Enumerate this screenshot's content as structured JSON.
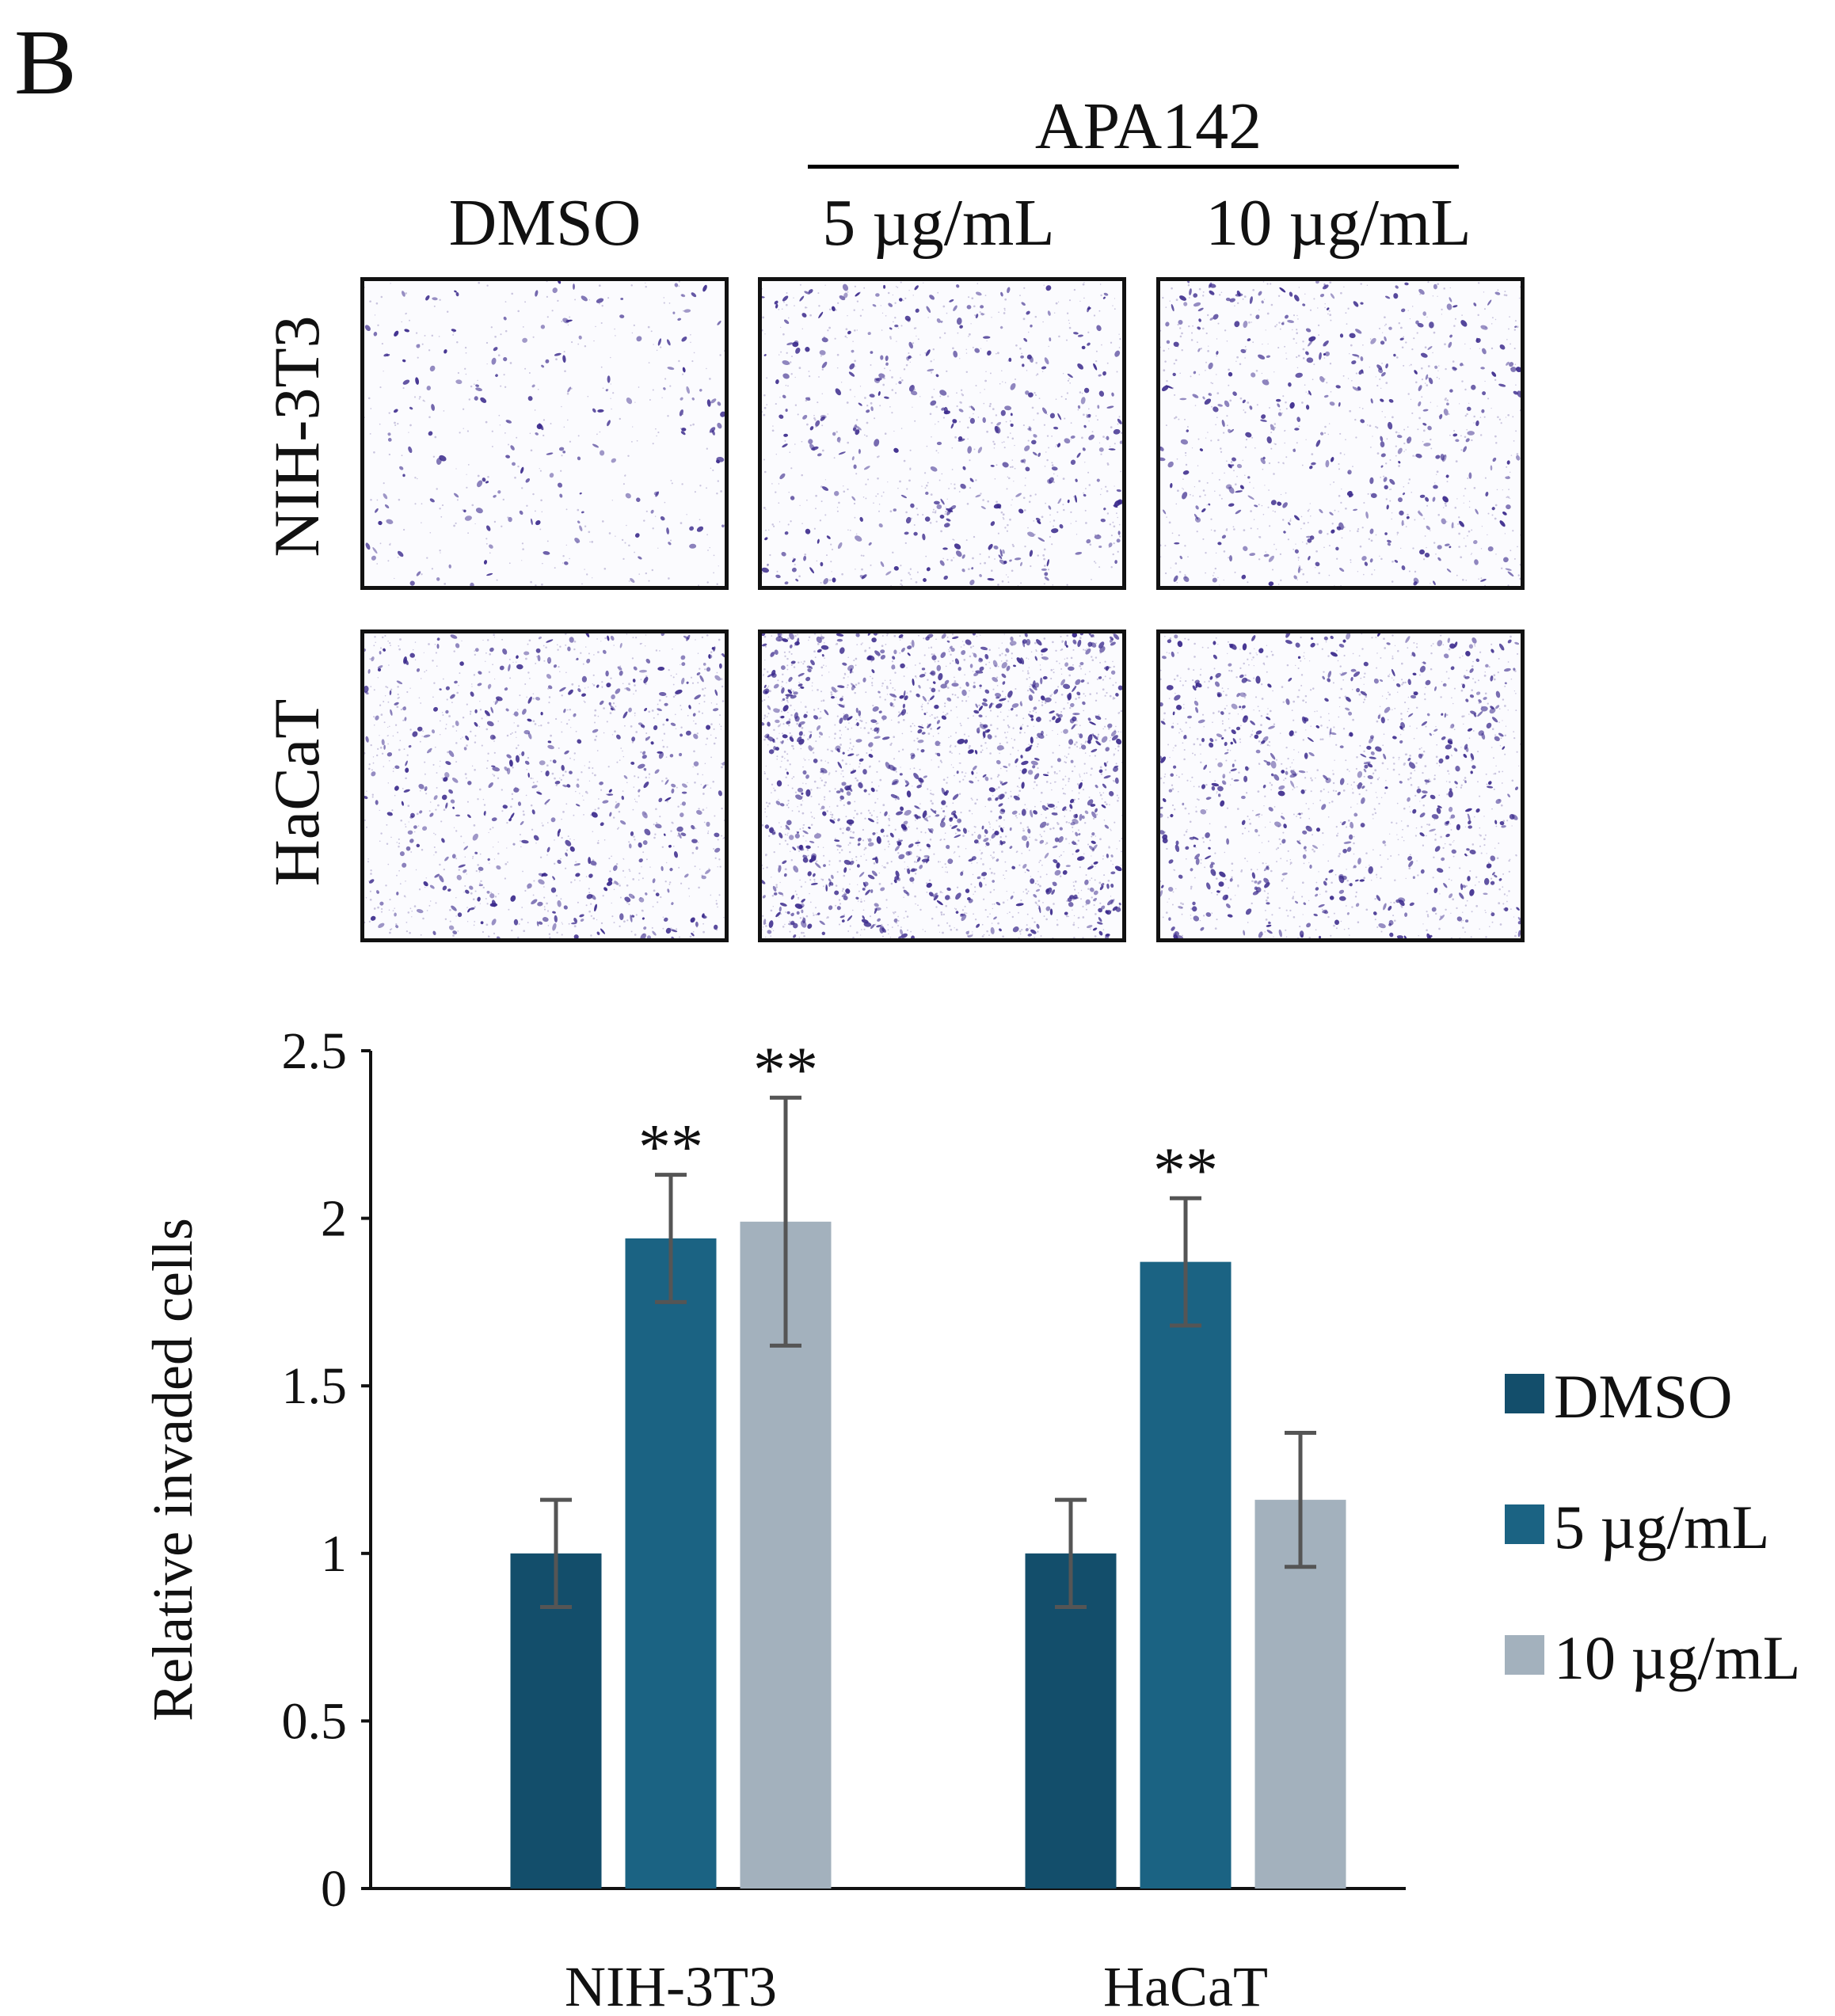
{
  "panel_letter": "B",
  "treatment_group": "APA142",
  "columns": [
    "DMSO",
    "5 µg/mL",
    "10 µg/mL"
  ],
  "rows": [
    "NIH-3T3",
    "HaCaT"
  ],
  "colors": {
    "DMSO": "#134e6b",
    "5 µg/mL": "#1b6383",
    "10 µg/mL": "#a3b1bd",
    "stain": "#3b2a8c",
    "error_bar": "#555555"
  },
  "chart_data": {
    "type": "bar",
    "title": "",
    "xlabel": "",
    "ylabel": "Relative invaded cells",
    "ylim": [
      0,
      2.5
    ],
    "yticks": [
      0,
      0.5,
      1,
      1.5,
      2,
      2.5
    ],
    "ytick_labels": [
      "0",
      "0.5",
      "1",
      "1.5",
      "2",
      "2.5"
    ],
    "grid": false,
    "legend_position": "right",
    "categories": [
      "NIH-3T3",
      "HaCaT"
    ],
    "series": [
      {
        "name": "DMSO",
        "values": [
          1.0,
          1.0
        ],
        "errors": [
          0.16,
          0.16
        ],
        "significance": [
          "",
          ""
        ]
      },
      {
        "name": "5 µg/mL",
        "values": [
          1.94,
          1.87
        ],
        "errors": [
          0.19,
          0.19
        ],
        "significance": [
          "**",
          "**"
        ]
      },
      {
        "name": "10 µg/mL",
        "values": [
          1.99,
          1.16
        ],
        "errors": [
          0.37,
          0.2
        ],
        "significance": [
          "**",
          ""
        ]
      }
    ]
  }
}
